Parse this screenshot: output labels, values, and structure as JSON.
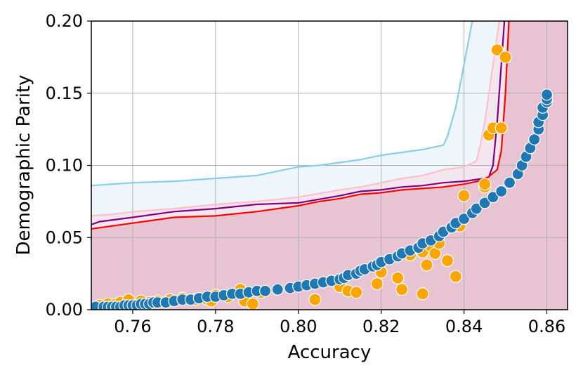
{
  "chart_data": {
    "type": "scatter",
    "xlabel": "Accuracy",
    "ylabel": "Demographic Parity",
    "xlim": [
      0.75,
      0.865
    ],
    "ylim": [
      0.0,
      0.2
    ],
    "xticks": [
      "0.76",
      "0.78",
      "0.80",
      "0.82",
      "0.84",
      "0.86"
    ],
    "yticks": [
      "0.00",
      "0.05",
      "0.10",
      "0.15",
      "0.20"
    ],
    "grid": true,
    "legend": "none",
    "colors": {
      "blue_points": "#1f77b4",
      "orange_points": "#ffa500",
      "skyblue_line": "#87ceeb",
      "pink_line": "#ffc0cb",
      "purple_line": "#800080",
      "red_line": "#ff0000",
      "fill_region": "#e8c3d1",
      "fill_band": "#eef6fb"
    },
    "lines": [
      {
        "color_key": "skyblue_line",
        "points": [
          [
            0.75,
            0.086
          ],
          [
            0.755,
            0.087
          ],
          [
            0.76,
            0.088
          ],
          [
            0.77,
            0.089
          ],
          [
            0.78,
            0.091
          ],
          [
            0.79,
            0.093
          ],
          [
            0.8,
            0.099
          ],
          [
            0.805,
            0.1
          ],
          [
            0.81,
            0.102
          ],
          [
            0.815,
            0.104
          ],
          [
            0.82,
            0.107
          ],
          [
            0.825,
            0.109
          ],
          [
            0.83,
            0.111
          ],
          [
            0.835,
            0.114
          ],
          [
            0.836,
            0.12
          ],
          [
            0.838,
            0.14
          ],
          [
            0.84,
            0.17
          ],
          [
            0.842,
            0.2
          ],
          [
            0.843,
            0.21
          ]
        ]
      },
      {
        "color_key": "pink_line",
        "points": [
          [
            0.75,
            0.065
          ],
          [
            0.755,
            0.066
          ],
          [
            0.76,
            0.068
          ],
          [
            0.77,
            0.07
          ],
          [
            0.78,
            0.073
          ],
          [
            0.79,
            0.075
          ],
          [
            0.8,
            0.078
          ],
          [
            0.81,
            0.083
          ],
          [
            0.815,
            0.085
          ],
          [
            0.82,
            0.088
          ],
          [
            0.825,
            0.091
          ],
          [
            0.83,
            0.093
          ],
          [
            0.835,
            0.097
          ],
          [
            0.84,
            0.099
          ],
          [
            0.843,
            0.103
          ],
          [
            0.844,
            0.115
          ],
          [
            0.845,
            0.13
          ],
          [
            0.846,
            0.15
          ],
          [
            0.848,
            0.19
          ],
          [
            0.849,
            0.21
          ]
        ]
      },
      {
        "color_key": "purple_line",
        "points": [
          [
            0.75,
            0.059
          ],
          [
            0.752,
            0.061
          ],
          [
            0.76,
            0.064
          ],
          [
            0.77,
            0.068
          ],
          [
            0.78,
            0.07
          ],
          [
            0.79,
            0.073
          ],
          [
            0.8,
            0.074
          ],
          [
            0.81,
            0.079
          ],
          [
            0.815,
            0.082
          ],
          [
            0.82,
            0.083
          ],
          [
            0.825,
            0.085
          ],
          [
            0.83,
            0.086
          ],
          [
            0.835,
            0.088
          ],
          [
            0.84,
            0.089
          ],
          [
            0.845,
            0.091
          ],
          [
            0.846,
            0.092
          ],
          [
            0.847,
            0.1
          ],
          [
            0.848,
            0.13
          ],
          [
            0.849,
            0.17
          ],
          [
            0.85,
            0.21
          ]
        ]
      },
      {
        "color_key": "red_line",
        "points": [
          [
            0.75,
            0.056
          ],
          [
            0.755,
            0.058
          ],
          [
            0.76,
            0.06
          ],
          [
            0.765,
            0.062
          ],
          [
            0.77,
            0.064
          ],
          [
            0.78,
            0.065
          ],
          [
            0.79,
            0.068
          ],
          [
            0.8,
            0.072
          ],
          [
            0.805,
            0.075
          ],
          [
            0.81,
            0.077
          ],
          [
            0.815,
            0.08
          ],
          [
            0.82,
            0.081
          ],
          [
            0.825,
            0.083
          ],
          [
            0.83,
            0.084
          ],
          [
            0.835,
            0.085
          ],
          [
            0.84,
            0.087
          ],
          [
            0.845,
            0.09
          ],
          [
            0.848,
            0.097
          ],
          [
            0.849,
            0.11
          ],
          [
            0.85,
            0.15
          ],
          [
            0.851,
            0.21
          ]
        ]
      }
    ],
    "scatter": [
      {
        "color_key": "orange_points",
        "points": [
          [
            0.752,
            0.003
          ],
          [
            0.754,
            0.004
          ],
          [
            0.756,
            0.004
          ],
          [
            0.757,
            0.005
          ],
          [
            0.759,
            0.007
          ],
          [
            0.762,
            0.006
          ],
          [
            0.764,
            0.005
          ],
          [
            0.766,
            0.006
          ],
          [
            0.769,
            0.007
          ],
          [
            0.772,
            0.008
          ],
          [
            0.775,
            0.007
          ],
          [
            0.778,
            0.007
          ],
          [
            0.779,
            0.006
          ],
          [
            0.78,
            0.01
          ],
          [
            0.783,
            0.009
          ],
          [
            0.786,
            0.014
          ],
          [
            0.787,
            0.006
          ],
          [
            0.789,
            0.004
          ],
          [
            0.791,
            0.012
          ],
          [
            0.804,
            0.007
          ],
          [
            0.81,
            0.016
          ],
          [
            0.812,
            0.013
          ],
          [
            0.814,
            0.012
          ],
          [
            0.819,
            0.018
          ],
          [
            0.82,
            0.026
          ],
          [
            0.824,
            0.022
          ],
          [
            0.825,
            0.014
          ],
          [
            0.827,
            0.038
          ],
          [
            0.83,
            0.011
          ],
          [
            0.83,
            0.04
          ],
          [
            0.831,
            0.031
          ],
          [
            0.832,
            0.044
          ],
          [
            0.833,
            0.039
          ],
          [
            0.834,
            0.046
          ],
          [
            0.836,
            0.034
          ],
          [
            0.838,
            0.023
          ],
          [
            0.839,
            0.058
          ],
          [
            0.84,
            0.079
          ],
          [
            0.845,
            0.085
          ],
          [
            0.845,
            0.087
          ],
          [
            0.846,
            0.121
          ],
          [
            0.847,
            0.126
          ],
          [
            0.848,
            0.18
          ],
          [
            0.849,
            0.126
          ],
          [
            0.85,
            0.175
          ]
        ]
      },
      {
        "color_key": "blue_points",
        "points": [
          [
            0.751,
            0.002
          ],
          [
            0.753,
            0.002
          ],
          [
            0.754,
            0.002
          ],
          [
            0.755,
            0.002
          ],
          [
            0.756,
            0.002
          ],
          [
            0.757,
            0.002
          ],
          [
            0.758,
            0.003
          ],
          [
            0.759,
            0.003
          ],
          [
            0.76,
            0.003
          ],
          [
            0.761,
            0.003
          ],
          [
            0.762,
            0.004
          ],
          [
            0.763,
            0.004
          ],
          [
            0.764,
            0.004
          ],
          [
            0.765,
            0.005
          ],
          [
            0.766,
            0.005
          ],
          [
            0.768,
            0.005
          ],
          [
            0.77,
            0.006
          ],
          [
            0.772,
            0.007
          ],
          [
            0.774,
            0.007
          ],
          [
            0.776,
            0.008
          ],
          [
            0.778,
            0.009
          ],
          [
            0.78,
            0.009
          ],
          [
            0.782,
            0.01
          ],
          [
            0.784,
            0.011
          ],
          [
            0.786,
            0.011
          ],
          [
            0.788,
            0.012
          ],
          [
            0.79,
            0.013
          ],
          [
            0.792,
            0.013
          ],
          [
            0.795,
            0.014
          ],
          [
            0.798,
            0.015
          ],
          [
            0.8,
            0.016
          ],
          [
            0.802,
            0.017
          ],
          [
            0.804,
            0.018
          ],
          [
            0.806,
            0.019
          ],
          [
            0.808,
            0.02
          ],
          [
            0.81,
            0.021
          ],
          [
            0.811,
            0.022
          ],
          [
            0.812,
            0.024
          ],
          [
            0.814,
            0.025
          ],
          [
            0.815,
            0.027
          ],
          [
            0.816,
            0.028
          ],
          [
            0.818,
            0.03
          ],
          [
            0.819,
            0.031
          ],
          [
            0.82,
            0.033
          ],
          [
            0.822,
            0.035
          ],
          [
            0.824,
            0.037
          ],
          [
            0.825,
            0.039
          ],
          [
            0.827,
            0.041
          ],
          [
            0.829,
            0.043
          ],
          [
            0.83,
            0.046
          ],
          [
            0.832,
            0.048
          ],
          [
            0.834,
            0.051
          ],
          [
            0.835,
            0.054
          ],
          [
            0.837,
            0.057
          ],
          [
            0.838,
            0.06
          ],
          [
            0.84,
            0.063
          ],
          [
            0.842,
            0.067
          ],
          [
            0.843,
            0.07
          ],
          [
            0.845,
            0.074
          ],
          [
            0.847,
            0.078
          ],
          [
            0.849,
            0.082
          ],
          [
            0.851,
            0.088
          ],
          [
            0.853,
            0.094
          ],
          [
            0.854,
            0.1
          ],
          [
            0.855,
            0.106
          ],
          [
            0.856,
            0.112
          ],
          [
            0.857,
            0.118
          ],
          [
            0.858,
            0.125
          ],
          [
            0.858,
            0.13
          ],
          [
            0.859,
            0.135
          ],
          [
            0.859,
            0.14
          ],
          [
            0.86,
            0.144
          ],
          [
            0.86,
            0.146
          ],
          [
            0.86,
            0.149
          ]
        ]
      }
    ]
  }
}
